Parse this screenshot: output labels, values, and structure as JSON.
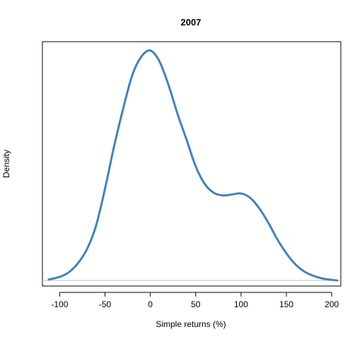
{
  "chart_data": {
    "type": "line",
    "title": "2007",
    "xlabel": "Simple returns (%)",
    "ylabel": "Density",
    "xlim": [
      -119,
      210
    ],
    "ylim": [
      -0.017,
      0.73
    ],
    "x_ticks": [
      -100,
      -50,
      0,
      50,
      100,
      150,
      200
    ],
    "y_ticks": [],
    "baseline": 0,
    "grid": false,
    "colors": {
      "line": "#4682b4",
      "baseline": "#bebebe",
      "frame": "#000000"
    },
    "series": [
      {
        "x": [
          -112,
          -100,
          -90,
          -80,
          -70,
          -60,
          -50,
          -40,
          -30,
          -20,
          -10,
          0,
          10,
          20,
          30,
          40,
          50,
          60,
          70,
          80,
          90,
          100,
          110,
          120,
          130,
          140,
          150,
          160,
          170,
          180,
          190,
          200,
          206
        ],
        "y": [
          0.003,
          0.011,
          0.025,
          0.052,
          0.095,
          0.166,
          0.28,
          0.41,
          0.525,
          0.627,
          0.684,
          0.703,
          0.67,
          0.598,
          0.509,
          0.43,
          0.349,
          0.295,
          0.268,
          0.26,
          0.263,
          0.266,
          0.253,
          0.221,
          0.177,
          0.126,
          0.083,
          0.049,
          0.027,
          0.014,
          0.006,
          0.002,
          0.0
        ]
      }
    ]
  }
}
